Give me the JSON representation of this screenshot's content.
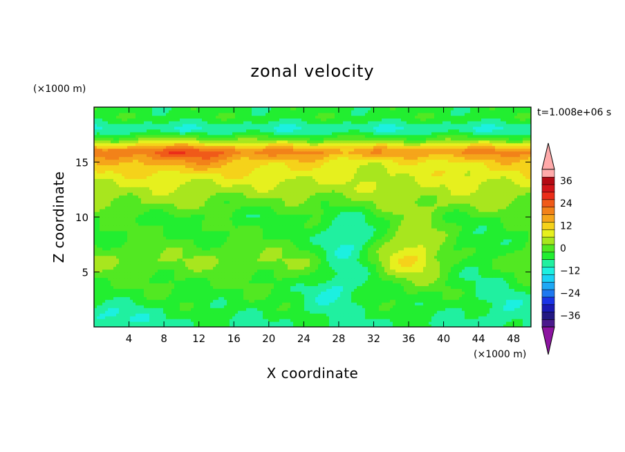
{
  "chart_data": {
    "type": "heatmap",
    "title": "zonal velocity",
    "xlabel": "X coordinate",
    "ylabel": "Z coordinate",
    "x_unit": "(×1000 m)",
    "y_unit": "(×1000 m)",
    "time_label": "t=1.008e+06 s",
    "xlim": [
      0,
      50
    ],
    "ylim": [
      0,
      20
    ],
    "x_ticks": [
      4,
      8,
      12,
      16,
      20,
      24,
      28,
      32,
      36,
      40,
      44,
      48
    ],
    "y_ticks": [
      5,
      10,
      15
    ],
    "colorbar": {
      "range": [
        -42,
        42
      ],
      "interval": 4,
      "ticks": [
        36,
        24,
        12,
        0,
        -12,
        -24,
        -36
      ],
      "extend": "both",
      "colors": [
        "#4b1a8c",
        "#231882",
        "#1a1ab4",
        "#1a34e6",
        "#1e78f0",
        "#1ea8f5",
        "#19d2f5",
        "#1cf0e0",
        "#20f0a0",
        "#22ee30",
        "#52e822",
        "#a8e61e",
        "#e6f01e",
        "#f5d21a",
        "#f5a51a",
        "#f28219",
        "#f05a19",
        "#eb2d19",
        "#d21419",
        "#b40a14",
        "#ffaaaa",
        "#8c14a0"
      ]
    },
    "field_description_values": {
      "z_profile_mean": [
        [
          0.5,
          -6
        ],
        [
          2,
          -4
        ],
        [
          4,
          -2
        ],
        [
          6,
          2
        ],
        [
          8,
          -2
        ],
        [
          10,
          -2
        ],
        [
          11,
          2
        ],
        [
          13,
          6
        ],
        [
          15,
          12
        ],
        [
          16,
          20
        ],
        [
          17,
          2
        ],
        [
          18,
          -10
        ],
        [
          19,
          -4
        ]
      ]
    }
  }
}
